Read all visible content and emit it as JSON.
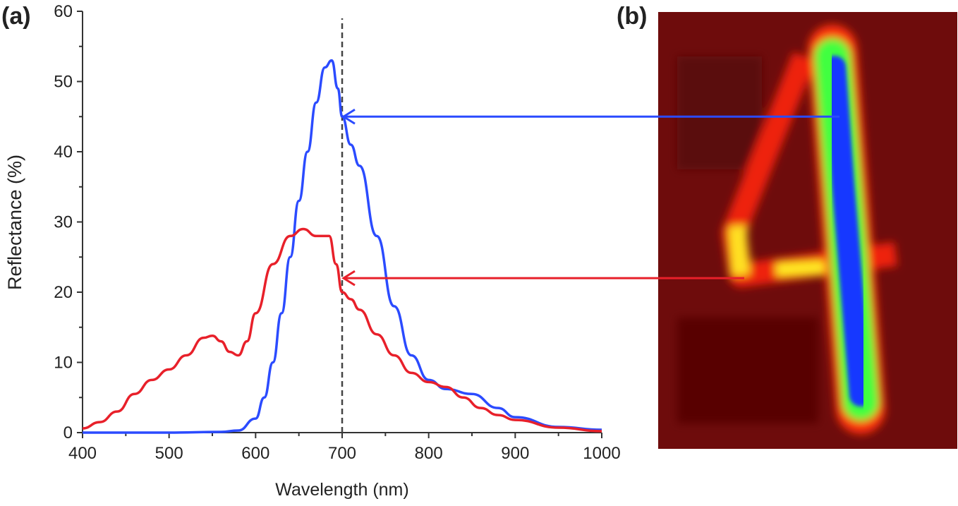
{
  "chart_data": {
    "type": "line",
    "panel_a_label": "(a)",
    "panel_b_label": "(b)",
    "xlabel": "Wavelength (nm)",
    "ylabel": "Reflectance (%)",
    "xlim": [
      400,
      1000
    ],
    "ylim": [
      0,
      60
    ],
    "xticks": [
      400,
      500,
      600,
      700,
      800,
      900,
      1000
    ],
    "yticks": [
      0,
      10,
      20,
      30,
      40,
      50,
      60
    ],
    "grid": false,
    "marker_line_x": 700,
    "series": [
      {
        "name": "blue",
        "color": "#2b4bff",
        "x": [
          400,
          500,
          560,
          580,
          600,
          610,
          620,
          630,
          640,
          650,
          660,
          670,
          680,
          688,
          695,
          700,
          710,
          720,
          740,
          760,
          780,
          800,
          820,
          850,
          880,
          900,
          950,
          1000
        ],
        "y": [
          0,
          0,
          0.1,
          0.3,
          2,
          5,
          10,
          17,
          25,
          33,
          40,
          47,
          52,
          53,
          49,
          45,
          41,
          38,
          28,
          18,
          11,
          7.5,
          6.2,
          5.5,
          3.5,
          2.2,
          0.8,
          0.4
        ],
        "arrow_y": 45
      },
      {
        "name": "red",
        "color": "#e8202a",
        "x": [
          400,
          420,
          440,
          460,
          480,
          500,
          520,
          540,
          550,
          560,
          570,
          580,
          590,
          600,
          620,
          640,
          655,
          670,
          685,
          693,
          700,
          710,
          720,
          740,
          760,
          780,
          800,
          820,
          840,
          860,
          880,
          900,
          950,
          1000
        ],
        "y": [
          0.6,
          1.5,
          3,
          5.5,
          7.5,
          9,
          11,
          13.5,
          13.8,
          13,
          11.5,
          11,
          13,
          17,
          24,
          28,
          29,
          28,
          28,
          24,
          20,
          19,
          17.5,
          14,
          11,
          8.5,
          7.2,
          6.5,
          5,
          3.5,
          2.5,
          1.8,
          0.7,
          0.2
        ],
        "arrow_y": 22
      }
    ]
  }
}
